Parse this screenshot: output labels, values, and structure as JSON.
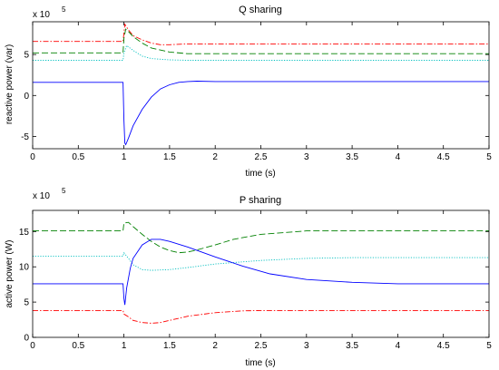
{
  "chart_data": [
    {
      "type": "line",
      "title": "Q sharing",
      "xlabel": "time (s)",
      "ylabel": "reactive power (var)",
      "exponent_label": "x 10",
      "exponent": "5",
      "xlim": [
        0,
        5
      ],
      "ylim": [
        -6.5,
        9
      ],
      "xticks": [
        0,
        0.5,
        1,
        1.5,
        2,
        2.5,
        3,
        3.5,
        4,
        4.5,
        5
      ],
      "xtick_labels": [
        "0",
        "0.5",
        "1",
        "1.5",
        "2",
        "2.5",
        "3",
        "3.5",
        "4",
        "4.5",
        "5"
      ],
      "yticks": [
        -5,
        0,
        5
      ],
      "ytick_labels": [
        "-5",
        "0",
        "5"
      ],
      "grid": false,
      "series": [
        {
          "color": "#ff0000",
          "dash": "dashdot",
          "x": [
            0,
            0.99,
            1.0,
            1.01,
            1.05,
            1.1,
            1.2,
            1.3,
            1.4,
            1.5,
            1.7,
            2.0,
            2.5,
            3,
            3.5,
            4,
            4.5,
            5
          ],
          "y": [
            6.6,
            6.6,
            7.6,
            8.7,
            8.0,
            7.3,
            6.8,
            6.4,
            6.2,
            6.2,
            6.3,
            6.3,
            6.3,
            6.3,
            6.3,
            6.3,
            6.3,
            6.3
          ]
        },
        {
          "color": "#008000",
          "dash": "dashed",
          "x": [
            0,
            0.99,
            1.0,
            1.02,
            1.05,
            1.1,
            1.2,
            1.3,
            1.5,
            1.7,
            2.0,
            2.5,
            3,
            3.5,
            4,
            4.5,
            5
          ],
          "y": [
            5.2,
            5.2,
            7.0,
            8.1,
            7.8,
            7.2,
            6.4,
            5.8,
            5.3,
            5.1,
            5.1,
            5.1,
            5.1,
            5.1,
            5.1,
            5.1,
            5.1
          ]
        },
        {
          "color": "#00bfbf",
          "dash": "dotted",
          "x": [
            0,
            0.99,
            1.0,
            1.03,
            1.1,
            1.2,
            1.3,
            1.5,
            1.7,
            2.0,
            2.5,
            3,
            3.5,
            4,
            4.5,
            5
          ],
          "y": [
            4.3,
            4.3,
            5.2,
            6.1,
            5.5,
            4.8,
            4.5,
            4.35,
            4.3,
            4.3,
            4.3,
            4.3,
            4.3,
            4.3,
            4.3,
            4.3
          ]
        },
        {
          "color": "#0000ff",
          "dash": "solid",
          "x": [
            0,
            0.99,
            1.0,
            1.01,
            1.02,
            1.05,
            1.1,
            1.2,
            1.3,
            1.4,
            1.5,
            1.6,
            1.7,
            1.8,
            2.0,
            2.5,
            3,
            3.5,
            4,
            4.5,
            5
          ],
          "y": [
            1.6,
            1.6,
            -3.0,
            -5.8,
            -6.0,
            -5.2,
            -3.7,
            -1.7,
            -0.2,
            0.8,
            1.3,
            1.6,
            1.7,
            1.75,
            1.7,
            1.7,
            1.7,
            1.7,
            1.7,
            1.7,
            1.7
          ]
        }
      ]
    },
    {
      "type": "line",
      "title": "P sharing",
      "xlabel": "time (s)",
      "ylabel": "active power (W)",
      "exponent_label": "x 10",
      "exponent": "5",
      "xlim": [
        0,
        5
      ],
      "ylim": [
        0,
        18
      ],
      "xticks": [
        0,
        0.5,
        1,
        1.5,
        2,
        2.5,
        3,
        3.5,
        4,
        4.5,
        5
      ],
      "xtick_labels": [
        "0",
        "0.5",
        "1",
        "1.5",
        "2",
        "2.5",
        "3",
        "3.5",
        "4",
        "4.5",
        "5"
      ],
      "yticks": [
        0,
        5,
        10,
        15
      ],
      "ytick_labels": [
        "0",
        "5",
        "10",
        "15"
      ],
      "grid": false,
      "series": [
        {
          "color": "#008000",
          "dash": "dashed",
          "x": [
            0,
            0.99,
            1.0,
            1.05,
            1.1,
            1.2,
            1.3,
            1.4,
            1.5,
            1.6,
            1.7,
            1.8,
            2.0,
            2.2,
            2.5,
            3,
            3.5,
            4,
            4.5,
            5
          ],
          "y": [
            15.1,
            15.1,
            16.2,
            16.3,
            15.7,
            14.6,
            13.6,
            12.8,
            12.3,
            12.0,
            12.1,
            12.4,
            13.1,
            13.9,
            14.6,
            15.1,
            15.1,
            15.1,
            15.1,
            15.1
          ]
        },
        {
          "color": "#00bfbf",
          "dash": "dotted",
          "x": [
            0,
            0.99,
            1.0,
            1.05,
            1.1,
            1.2,
            1.3,
            1.5,
            1.7,
            2.0,
            2.5,
            3,
            3.5,
            4,
            4.5,
            5
          ],
          "y": [
            11.5,
            11.5,
            12.0,
            11.2,
            10.3,
            9.6,
            9.5,
            9.6,
            9.9,
            10.4,
            10.9,
            11.2,
            11.3,
            11.3,
            11.3,
            11.3
          ]
        },
        {
          "color": "#0000ff",
          "dash": "solid",
          "x": [
            0,
            0.99,
            1.0,
            1.01,
            1.03,
            1.07,
            1.1,
            1.2,
            1.3,
            1.4,
            1.5,
            1.7,
            2.0,
            2.3,
            2.6,
            3,
            3.5,
            4,
            4.5,
            5
          ],
          "y": [
            7.6,
            7.6,
            5.5,
            4.6,
            7.0,
            9.8,
            11.2,
            13.1,
            13.9,
            13.9,
            13.6,
            12.8,
            11.4,
            10.1,
            9.0,
            8.2,
            7.8,
            7.6,
            7.6,
            7.6
          ]
        },
        {
          "color": "#ff0000",
          "dash": "dashdot",
          "x": [
            0,
            0.99,
            1.0,
            1.05,
            1.1,
            1.2,
            1.3,
            1.4,
            1.5,
            1.7,
            2.0,
            2.3,
            2.5,
            3,
            3.5,
            4,
            4.5,
            5
          ],
          "y": [
            3.8,
            3.8,
            3.3,
            2.9,
            2.4,
            2.1,
            2.0,
            2.1,
            2.4,
            3.0,
            3.5,
            3.75,
            3.8,
            3.8,
            3.8,
            3.8,
            3.8,
            3.8
          ]
        }
      ]
    }
  ]
}
